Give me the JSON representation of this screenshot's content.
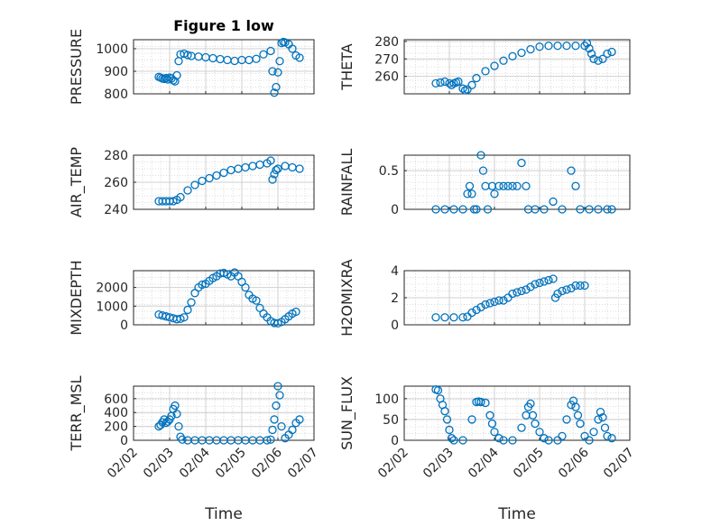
{
  "chart_data": [
    {
      "type": "scatter",
      "title": "Figure 1 low",
      "ylabel": "PRESSURE",
      "ylim": [
        800,
        1040
      ],
      "yticks": [
        800,
        900,
        1000
      ],
      "points": [
        [
          2.7,
          875
        ],
        [
          2.75,
          872
        ],
        [
          2.8,
          868
        ],
        [
          2.85,
          866
        ],
        [
          2.9,
          870
        ],
        [
          2.95,
          864
        ],
        [
          3.0,
          872
        ],
        [
          3.05,
          868
        ],
        [
          3.1,
          860
        ],
        [
          3.15,
          855
        ],
        [
          3.2,
          882
        ],
        [
          3.25,
          945
        ],
        [
          3.3,
          975
        ],
        [
          3.4,
          978
        ],
        [
          3.5,
          972
        ],
        [
          3.6,
          968
        ],
        [
          3.8,
          965
        ],
        [
          4.0,
          962
        ],
        [
          4.2,
          958
        ],
        [
          4.4,
          954
        ],
        [
          4.6,
          950
        ],
        [
          4.8,
          946
        ],
        [
          5.0,
          950
        ],
        [
          5.2,
          950
        ],
        [
          5.4,
          955
        ],
        [
          5.6,
          975
        ],
        [
          5.8,
          990
        ],
        [
          5.85,
          900
        ],
        [
          5.9,
          805
        ],
        [
          5.95,
          830
        ],
        [
          6.0,
          895
        ],
        [
          6.05,
          945
        ],
        [
          6.1,
          1025
        ],
        [
          6.15,
          1030
        ],
        [
          6.2,
          1028
        ],
        [
          6.3,
          1020
        ],
        [
          6.4,
          1000
        ],
        [
          6.5,
          970
        ],
        [
          6.6,
          960
        ]
      ]
    },
    {
      "type": "scatter",
      "title": "",
      "ylabel": "THETA",
      "ylim": [
        250,
        281
      ],
      "yticks": [
        260,
        270,
        280
      ],
      "points": [
        [
          2.7,
          256
        ],
        [
          2.8,
          256.5
        ],
        [
          2.9,
          257
        ],
        [
          3.0,
          256
        ],
        [
          3.05,
          255
        ],
        [
          3.1,
          256
        ],
        [
          3.15,
          256.5
        ],
        [
          3.2,
          257
        ],
        [
          3.3,
          253
        ],
        [
          3.35,
          252
        ],
        [
          3.4,
          252.5
        ],
        [
          3.5,
          255
        ],
        [
          3.6,
          259
        ],
        [
          3.8,
          263
        ],
        [
          4.0,
          266
        ],
        [
          4.2,
          269
        ],
        [
          4.4,
          271.5
        ],
        [
          4.6,
          273.5
        ],
        [
          4.8,
          275.5
        ],
        [
          5.0,
          277
        ],
        [
          5.2,
          277.5
        ],
        [
          5.4,
          277.5
        ],
        [
          5.6,
          277.5
        ],
        [
          5.8,
          277.5
        ],
        [
          6.0,
          277.5
        ],
        [
          6.05,
          279
        ],
        [
          6.1,
          276
        ],
        [
          6.15,
          273
        ],
        [
          6.2,
          270
        ],
        [
          6.3,
          269
        ],
        [
          6.4,
          270
        ],
        [
          6.5,
          273
        ],
        [
          6.6,
          274
        ]
      ]
    },
    {
      "type": "scatter",
      "title": "",
      "ylabel": "AIR_TEMP",
      "ylim": [
        240,
        280
      ],
      "yticks": [
        240,
        260,
        280
      ],
      "points": [
        [
          2.7,
          246
        ],
        [
          2.8,
          246
        ],
        [
          2.9,
          246
        ],
        [
          3.0,
          246
        ],
        [
          3.1,
          246
        ],
        [
          3.2,
          247
        ],
        [
          3.3,
          249
        ],
        [
          3.5,
          254
        ],
        [
          3.7,
          258
        ],
        [
          3.9,
          261
        ],
        [
          4.1,
          263
        ],
        [
          4.3,
          265
        ],
        [
          4.5,
          267
        ],
        [
          4.7,
          269
        ],
        [
          4.9,
          270
        ],
        [
          5.1,
          271
        ],
        [
          5.3,
          272
        ],
        [
          5.5,
          273
        ],
        [
          5.7,
          274
        ],
        [
          5.8,
          276
        ],
        [
          5.85,
          262
        ],
        [
          5.9,
          266
        ],
        [
          5.95,
          269
        ],
        [
          6.0,
          270
        ],
        [
          6.2,
          272
        ],
        [
          6.4,
          271
        ],
        [
          6.6,
          270
        ]
      ]
    },
    {
      "type": "scatter",
      "title": "",
      "ylabel": "RAINFALL",
      "ylim": [
        0,
        0.7
      ],
      "yticks": [
        0,
        0.5
      ],
      "points": [
        [
          2.7,
          0
        ],
        [
          2.9,
          0
        ],
        [
          3.1,
          0
        ],
        [
          3.3,
          0
        ],
        [
          3.4,
          0.2
        ],
        [
          3.45,
          0.3
        ],
        [
          3.5,
          0.2
        ],
        [
          3.55,
          0
        ],
        [
          3.6,
          0
        ],
        [
          3.7,
          0.7
        ],
        [
          3.75,
          0.5
        ],
        [
          3.8,
          0.3
        ],
        [
          3.85,
          0
        ],
        [
          3.95,
          0.3
        ],
        [
          4.0,
          0.2
        ],
        [
          4.1,
          0.3
        ],
        [
          4.2,
          0.3
        ],
        [
          4.3,
          0.3
        ],
        [
          4.4,
          0.3
        ],
        [
          4.5,
          0.3
        ],
        [
          4.6,
          0.6
        ],
        [
          4.7,
          0.3
        ],
        [
          4.75,
          0
        ],
        [
          4.9,
          0
        ],
        [
          5.1,
          0
        ],
        [
          5.3,
          0.1
        ],
        [
          5.5,
          0
        ],
        [
          5.7,
          0.5
        ],
        [
          5.8,
          0.3
        ],
        [
          5.9,
          0
        ],
        [
          6.1,
          0
        ],
        [
          6.3,
          0
        ],
        [
          6.5,
          0
        ],
        [
          6.6,
          0
        ]
      ]
    },
    {
      "type": "scatter",
      "title": "",
      "ylabel": "MIXDEPTH",
      "ylim": [
        0,
        2900
      ],
      "yticks": [
        0,
        1000,
        2000
      ],
      "points": [
        [
          2.7,
          550
        ],
        [
          2.8,
          500
        ],
        [
          2.9,
          450
        ],
        [
          3.0,
          400
        ],
        [
          3.1,
          350
        ],
        [
          3.2,
          300
        ],
        [
          3.3,
          320
        ],
        [
          3.4,
          400
        ],
        [
          3.5,
          800
        ],
        [
          3.6,
          1200
        ],
        [
          3.7,
          1700
        ],
        [
          3.8,
          2000
        ],
        [
          3.9,
          2150
        ],
        [
          4.0,
          2200
        ],
        [
          4.1,
          2350
        ],
        [
          4.2,
          2500
        ],
        [
          4.3,
          2600
        ],
        [
          4.4,
          2750
        ],
        [
          4.5,
          2780
        ],
        [
          4.6,
          2700
        ],
        [
          4.7,
          2600
        ],
        [
          4.8,
          2800
        ],
        [
          4.9,
          2600
        ],
        [
          5.0,
          2300
        ],
        [
          5.1,
          2000
        ],
        [
          5.2,
          1600
        ],
        [
          5.3,
          1400
        ],
        [
          5.4,
          1300
        ],
        [
          5.5,
          900
        ],
        [
          5.6,
          600
        ],
        [
          5.7,
          400
        ],
        [
          5.8,
          200
        ],
        [
          5.9,
          100
        ],
        [
          6.0,
          80
        ],
        [
          6.1,
          150
        ],
        [
          6.2,
          300
        ],
        [
          6.3,
          450
        ],
        [
          6.4,
          600
        ],
        [
          6.5,
          700
        ]
      ]
    },
    {
      "type": "scatter",
      "title": "",
      "ylabel": "H2OMIXRA",
      "ylim": [
        0,
        4
      ],
      "yticks": [
        0,
        2,
        4
      ],
      "points": [
        [
          2.7,
          0.55
        ],
        [
          2.9,
          0.55
        ],
        [
          3.1,
          0.55
        ],
        [
          3.3,
          0.55
        ],
        [
          3.4,
          0.6
        ],
        [
          3.5,
          0.9
        ],
        [
          3.6,
          1.1
        ],
        [
          3.7,
          1.3
        ],
        [
          3.8,
          1.5
        ],
        [
          3.9,
          1.6
        ],
        [
          4.0,
          1.7
        ],
        [
          4.1,
          1.8
        ],
        [
          4.2,
          1.8
        ],
        [
          4.3,
          2.0
        ],
        [
          4.4,
          2.3
        ],
        [
          4.5,
          2.4
        ],
        [
          4.6,
          2.5
        ],
        [
          4.7,
          2.6
        ],
        [
          4.8,
          2.8
        ],
        [
          4.9,
          3.0
        ],
        [
          5.0,
          3.1
        ],
        [
          5.1,
          3.2
        ],
        [
          5.2,
          3.3
        ],
        [
          5.3,
          3.4
        ],
        [
          5.35,
          2.0
        ],
        [
          5.4,
          2.3
        ],
        [
          5.5,
          2.5
        ],
        [
          5.6,
          2.6
        ],
        [
          5.7,
          2.7
        ],
        [
          5.8,
          2.9
        ],
        [
          5.9,
          2.9
        ],
        [
          6.0,
          2.9
        ]
      ]
    },
    {
      "type": "scatter",
      "title": "",
      "ylabel": "TERR_MSL",
      "ylim": [
        0,
        780
      ],
      "yticks": [
        0,
        200,
        400,
        600
      ],
      "points": [
        [
          2.7,
          200
        ],
        [
          2.75,
          220
        ],
        [
          2.8,
          260
        ],
        [
          2.85,
          300
        ],
        [
          2.9,
          250
        ],
        [
          2.95,
          270
        ],
        [
          3.0,
          300
        ],
        [
          3.05,
          350
        ],
        [
          3.1,
          450
        ],
        [
          3.15,
          500
        ],
        [
          3.2,
          380
        ],
        [
          3.25,
          200
        ],
        [
          3.3,
          50
        ],
        [
          3.35,
          10
        ],
        [
          3.5,
          0
        ],
        [
          3.7,
          0
        ],
        [
          3.9,
          0
        ],
        [
          4.1,
          0
        ],
        [
          4.3,
          0
        ],
        [
          4.5,
          0
        ],
        [
          4.7,
          0
        ],
        [
          4.9,
          0
        ],
        [
          5.1,
          0
        ],
        [
          5.3,
          0
        ],
        [
          5.5,
          0
        ],
        [
          5.7,
          0
        ],
        [
          5.8,
          10
        ],
        [
          5.85,
          150
        ],
        [
          5.9,
          300
        ],
        [
          5.95,
          500
        ],
        [
          6.0,
          780
        ],
        [
          6.05,
          650
        ],
        [
          6.1,
          200
        ],
        [
          6.2,
          30
        ],
        [
          6.3,
          80
        ],
        [
          6.4,
          150
        ],
        [
          6.5,
          250
        ],
        [
          6.6,
          300
        ]
      ]
    },
    {
      "type": "scatter",
      "title": "",
      "ylabel": "SUN_FLUX",
      "ylim": [
        0,
        130
      ],
      "yticks": [
        0,
        50,
        100
      ],
      "points": [
        [
          2.7,
          122
        ],
        [
          2.75,
          120
        ],
        [
          2.8,
          100
        ],
        [
          2.85,
          85
        ],
        [
          2.9,
          70
        ],
        [
          2.95,
          50
        ],
        [
          3.0,
          25
        ],
        [
          3.05,
          5
        ],
        [
          3.1,
          0
        ],
        [
          3.3,
          0
        ],
        [
          3.5,
          50
        ],
        [
          3.6,
          92
        ],
        [
          3.65,
          93
        ],
        [
          3.7,
          92
        ],
        [
          3.8,
          90
        ],
        [
          3.9,
          60
        ],
        [
          3.95,
          40
        ],
        [
          4.0,
          20
        ],
        [
          4.1,
          5
        ],
        [
          4.2,
          0
        ],
        [
          4.4,
          0
        ],
        [
          4.6,
          30
        ],
        [
          4.7,
          60
        ],
        [
          4.75,
          80
        ],
        [
          4.8,
          88
        ],
        [
          4.85,
          60
        ],
        [
          4.9,
          40
        ],
        [
          5.0,
          20
        ],
        [
          5.1,
          5
        ],
        [
          5.2,
          0
        ],
        [
          5.4,
          0
        ],
        [
          5.5,
          10
        ],
        [
          5.6,
          50
        ],
        [
          5.7,
          85
        ],
        [
          5.75,
          95
        ],
        [
          5.8,
          80
        ],
        [
          5.85,
          60
        ],
        [
          5.9,
          40
        ],
        [
          6.0,
          10
        ],
        [
          6.1,
          0
        ],
        [
          6.2,
          20
        ],
        [
          6.3,
          50
        ],
        [
          6.35,
          68
        ],
        [
          6.4,
          55
        ],
        [
          6.45,
          30
        ],
        [
          6.5,
          10
        ],
        [
          6.6,
          5
        ]
      ]
    }
  ],
  "xaxis": {
    "label": "Time",
    "ticks": [
      "02/02",
      "02/03",
      "02/04",
      "02/05",
      "02/06",
      "02/07"
    ],
    "range": [
      2,
      7
    ]
  }
}
